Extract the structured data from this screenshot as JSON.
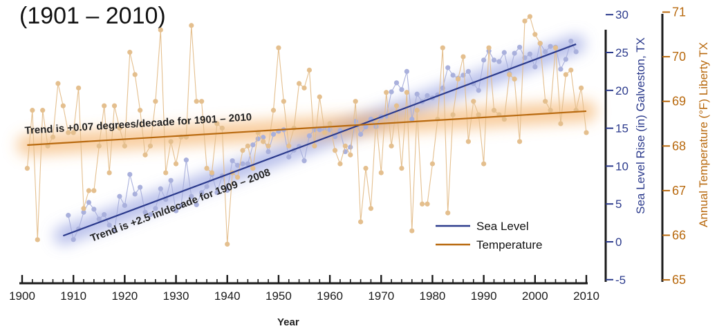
{
  "title": "(1901 – 2010)",
  "chart_data": {
    "type": "line",
    "xlabel": "Year",
    "x_ticks": [
      1900,
      1910,
      1920,
      1930,
      1940,
      1950,
      1960,
      1970,
      1980,
      1990,
      2000,
      2010
    ],
    "xlim": [
      1900,
      2010
    ],
    "y_left": {
      "label": "Sea Level Rise (in) Galveston, TX",
      "ticks": [
        -5,
        0,
        5,
        10,
        15,
        20,
        25,
        30
      ],
      "ylim": [
        -5,
        30
      ],
      "color": "#2b3a8c"
    },
    "y_right": {
      "label": "Annual Temperature (°F) Liberty TX",
      "ticks": [
        65,
        66,
        67,
        68,
        69,
        70,
        71
      ],
      "ylim": [
        65,
        71
      ],
      "color": "#b8690e"
    },
    "series": [
      {
        "name": "Sea Level",
        "axis": "left",
        "color": "#2b3a8c",
        "point_color": "#a9b0dc",
        "x": [
          1909,
          1910,
          1911,
          1912,
          1913,
          1914,
          1915,
          1916,
          1917,
          1918,
          1919,
          1920,
          1921,
          1922,
          1923,
          1924,
          1925,
          1926,
          1927,
          1928,
          1929,
          1930,
          1931,
          1932,
          1933,
          1934,
          1935,
          1936,
          1937,
          1938,
          1939,
          1940,
          1941,
          1942,
          1943,
          1944,
          1945,
          1946,
          1947,
          1948,
          1949,
          1950,
          1951,
          1952,
          1953,
          1954,
          1955,
          1956,
          1957,
          1958,
          1959,
          1960,
          1961,
          1962,
          1963,
          1964,
          1965,
          1966,
          1967,
          1968,
          1969,
          1970,
          1971,
          1972,
          1973,
          1974,
          1975,
          1976,
          1977,
          1978,
          1979,
          1980,
          1981,
          1982,
          1983,
          1984,
          1985,
          1986,
          1987,
          1988,
          1989,
          1990,
          1991,
          1992,
          1993,
          1994,
          1995,
          1996,
          1997,
          1998,
          1999,
          2000,
          2001,
          2002,
          2003,
          2004,
          2005,
          2006,
          2007,
          2008
        ],
        "values": [
          3.5,
          0.3,
          1.7,
          3.9,
          5.2,
          4.3,
          3.0,
          3.6,
          2.2,
          1.5,
          6.0,
          4.8,
          8.9,
          6.3,
          7.2,
          3.9,
          3.6,
          4.4,
          7.0,
          5.6,
          8.1,
          4.1,
          4.8,
          10.8,
          6.0,
          4.9,
          6.5,
          7.3,
          8.9,
          6.5,
          8.7,
          6.8,
          10.7,
          10.1,
          10.3,
          10.3,
          12.8,
          13.6,
          13.8,
          11.9,
          14.2,
          14.6,
          14.8,
          11.2,
          12.1,
          12.6,
          10.7,
          14.0,
          14.8,
          14.8,
          14.8,
          14.8,
          13.9,
          14.7,
          11.9,
          12.5,
          15.9,
          14.2,
          15.2,
          16.2,
          15.2,
          16.5,
          16.6,
          19.8,
          21.0,
          20.1,
          22.5,
          16.2,
          19.5,
          18.5,
          19.3,
          19.0,
          19.4,
          20.3,
          23.0,
          22.0,
          21.6,
          22.0,
          22.5,
          20.9,
          20.0,
          24.0,
          25.2,
          24.0,
          23.8,
          25.0,
          22.2,
          24.9,
          25.7,
          24.3,
          24.8,
          23.1,
          26.2,
          25.1,
          25.8,
          25.7,
          22.8,
          24.1,
          26.5,
          25.1
        ]
      },
      {
        "name": "Temperature",
        "axis": "right",
        "color": "#b8690e",
        "point_color": "#e4bf8e",
        "x": [
          1901,
          1902,
          1903,
          1904,
          1905,
          1906,
          1907,
          1908,
          1909,
          1910,
          1911,
          1912,
          1913,
          1914,
          1915,
          1916,
          1917,
          1918,
          1919,
          1920,
          1921,
          1922,
          1923,
          1924,
          1925,
          1926,
          1927,
          1928,
          1929,
          1930,
          1931,
          1932,
          1933,
          1934,
          1935,
          1936,
          1937,
          1938,
          1939,
          1940,
          1941,
          1942,
          1943,
          1944,
          1945,
          1946,
          1947,
          1948,
          1949,
          1950,
          1951,
          1952,
          1953,
          1954,
          1955,
          1956,
          1957,
          1958,
          1959,
          1960,
          1961,
          1962,
          1963,
          1964,
          1965,
          1966,
          1967,
          1968,
          1969,
          1970,
          1971,
          1972,
          1973,
          1974,
          1975,
          1976,
          1977,
          1978,
          1979,
          1980,
          1981,
          1982,
          1983,
          1984,
          1985,
          1986,
          1987,
          1988,
          1989,
          1990,
          1991,
          1992,
          1993,
          1994,
          1995,
          1996,
          1997,
          1998,
          1999,
          2000,
          2001,
          2002,
          2003,
          2004,
          2005,
          2006,
          2007,
          2008,
          2009,
          2010
        ],
        "values": [
          67.5,
          68.8,
          65.9,
          68.8,
          68.0,
          68.2,
          69.4,
          68.9,
          68.3,
          68.3,
          69.3,
          66.6,
          67.0,
          67.0,
          68.0,
          68.9,
          67.4,
          68.9,
          68.4,
          68.0,
          70.1,
          69.6,
          68.8,
          67.8,
          68.0,
          69.0,
          70.6,
          67.4,
          68.1,
          67.6,
          68.2,
          68.2,
          70.7,
          69.0,
          69.0,
          67.5,
          67.4,
          68.5,
          68.4,
          65.8,
          67.4,
          67.3,
          67.9,
          68.0,
          67.5,
          68.3,
          68.1,
          68.0,
          68.8,
          70.2,
          69.0,
          68.0,
          68.4,
          69.4,
          69.3,
          69.7,
          68.0,
          69.1,
          68.3,
          68.5,
          67.9,
          67.6,
          68.0,
          67.8,
          69.0,
          66.3,
          67.5,
          66.6,
          68.6,
          67.4,
          69.2,
          68.0,
          68.9,
          67.5,
          69.2,
          66.1,
          68.8,
          66.7,
          66.7,
          67.6,
          68.6,
          70.2,
          66.5,
          68.7,
          69.5,
          70.0,
          68.1,
          69.0,
          68.7,
          67.6,
          70.2,
          68.8,
          68.7,
          68.6,
          69.6,
          69.5,
          68.1,
          70.8,
          70.9,
          70.5,
          70.3,
          69.0,
          68.8,
          70.2,
          68.5,
          69.6,
          69.7,
          68.8,
          69.3,
          68.3
        ]
      }
    ],
    "trends": [
      {
        "series": "Sea Level",
        "label": "Trend is +2.5 in/decade for 1909 – 2008",
        "x0": 1908,
        "y0": 0.8,
        "x1": 2008,
        "y1": 26.1
      },
      {
        "series": "Temperature",
        "label": "Trend is +0.07 degrees/decade for 1901 – 2010",
        "x0": 1901,
        "y0": 68.02,
        "x1": 2010,
        "y1": 68.78
      }
    ],
    "legend": {
      "placement": "bottom-right",
      "entries": [
        {
          "label": "Sea Level",
          "color": "#2b3a8c"
        },
        {
          "label": "Temperature",
          "color": "#b8690e"
        }
      ]
    },
    "grid": false
  }
}
